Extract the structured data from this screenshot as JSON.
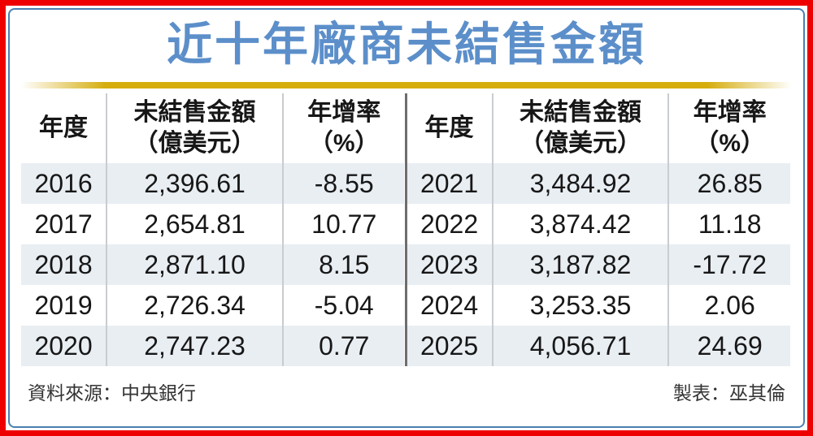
{
  "title": "近十年廠商未結售金額",
  "colors": {
    "title_blue": "#5c8fca",
    "gold_bar": "#d5ad0d",
    "row_shade": "#e9eef3",
    "frame_red": "#ee0000",
    "inner_border_blue": "#4b7fb1",
    "center_divider": "#6e6e6e",
    "column_line": "#c9ccd0"
  },
  "table": {
    "headers": {
      "year": "年度",
      "amount_line1": "未結售金額",
      "amount_line2": "（億美元）",
      "rate_line1": "年增率",
      "rate_line2": "（%）"
    },
    "left_rows": [
      {
        "year": "2016",
        "amount": "2,396.61",
        "rate": "-8.55"
      },
      {
        "year": "2017",
        "amount": "2,654.81",
        "rate": "10.77"
      },
      {
        "year": "2018",
        "amount": "2,871.10",
        "rate": "8.15"
      },
      {
        "year": "2019",
        "amount": "2,726.34",
        "rate": "-5.04"
      },
      {
        "year": "2020",
        "amount": "2,747.23",
        "rate": "0.77"
      }
    ],
    "right_rows": [
      {
        "year": "2021",
        "amount": "3,484.92",
        "rate": "26.85"
      },
      {
        "year": "2022",
        "amount": "3,874.42",
        "rate": "11.18"
      },
      {
        "year": "2023",
        "amount": "3,187.82",
        "rate": "-17.72"
      },
      {
        "year": "2024",
        "amount": "3,253.35",
        "rate": "2.06"
      },
      {
        "year": "2025",
        "amount": "4,056.71",
        "rate": "24.69"
      }
    ]
  },
  "footer": {
    "source": "資料來源：中央銀行",
    "credit": "製表：巫其倫"
  },
  "chart_data": {
    "type": "table",
    "title": "近十年廠商未結售金額",
    "columns": [
      "年度",
      "未結售金額（億美元）",
      "年增率（%）"
    ],
    "rows": [
      [
        2016,
        2396.61,
        -8.55
      ],
      [
        2017,
        2654.81,
        10.77
      ],
      [
        2018,
        2871.1,
        8.15
      ],
      [
        2019,
        2726.34,
        -5.04
      ],
      [
        2020,
        2747.23,
        0.77
      ],
      [
        2021,
        3484.92,
        26.85
      ],
      [
        2022,
        3874.42,
        11.18
      ],
      [
        2023,
        3187.82,
        -17.72
      ],
      [
        2024,
        3253.35,
        2.06
      ],
      [
        2025,
        4056.71,
        24.69
      ]
    ],
    "source": "資料來源：中央銀行",
    "credit": "製表：巫其倫"
  }
}
